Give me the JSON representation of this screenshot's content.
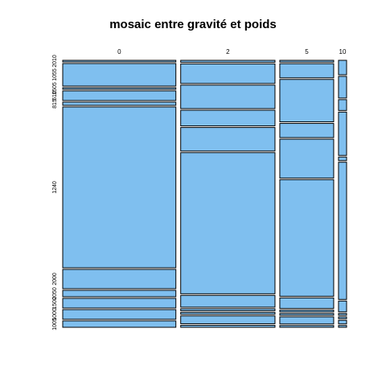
{
  "chart_data": {
    "type": "mosaic",
    "title": "mosaic entre gravité et poids",
    "xlabel": "",
    "ylabel": "",
    "fill_color": "#7fbfef",
    "x": {
      "categories": [
        "0",
        "2",
        "5",
        "10"
      ],
      "proportions": [
        0.42,
        0.35,
        0.2,
        0.03
      ]
    },
    "y": {
      "categories": [
        "2010",
        "1055",
        "1505",
        "610",
        "815",
        "1240",
        "2000",
        "2050",
        "1500",
        "1000",
        "1005"
      ],
      "shown_labels": [
        "2010",
        "1055",
        "1505",
        "610",
        "815",
        "1240",
        "2000",
        "2050",
        "1500",
        "1000",
        "1005"
      ]
    },
    "cells": [
      [
        0.005,
        0.07,
        0.005,
        0.03,
        0.01,
        0.5,
        0.06,
        0.02,
        0.03,
        0.03,
        0.02
      ],
      [
        0.005,
        0.05,
        0.06,
        0.04,
        0.06,
        0.36,
        0.03,
        0.005,
        0.005,
        0.02,
        0.005
      ],
      [
        0.005,
        0.04,
        0.12,
        0.04,
        0.11,
        0.33,
        0.03,
        0.005,
        0.005,
        0.02,
        0.005
      ],
      [
        0.04,
        0.06,
        0.03,
        0.12,
        0.01,
        0.38,
        0.03,
        0.005,
        0.005,
        0.01,
        0.005
      ]
    ]
  }
}
